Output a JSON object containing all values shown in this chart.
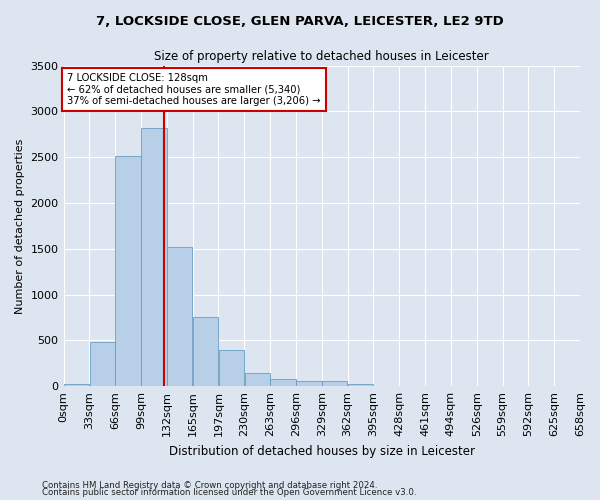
{
  "title": "7, LOCKSIDE CLOSE, GLEN PARVA, LEICESTER, LE2 9TD",
  "subtitle": "Size of property relative to detached houses in Leicester",
  "xlabel": "Distribution of detached houses by size in Leicester",
  "ylabel": "Number of detached properties",
  "bar_values": [
    25,
    480,
    2510,
    2820,
    1520,
    750,
    390,
    140,
    75,
    60,
    60,
    25,
    0,
    0,
    0,
    0,
    0,
    0,
    0,
    0
  ],
  "bin_labels": [
    "0sqm",
    "33sqm",
    "66sqm",
    "99sqm",
    "132sqm",
    "165sqm",
    "197sqm",
    "230sqm",
    "263sqm",
    "296sqm",
    "329sqm",
    "362sqm",
    "395sqm",
    "428sqm",
    "461sqm",
    "494sqm",
    "526sqm",
    "559sqm",
    "592sqm",
    "625sqm",
    "658sqm"
  ],
  "bar_color": "#b8cfe8",
  "bar_edge_color": "#6a9ec0",
  "background_color": "#dde6f0",
  "grid_color": "#ffffff",
  "property_line_x": 128,
  "property_line_label": "7 LOCKSIDE CLOSE: 128sqm",
  "annotation_line1": "← 62% of detached houses are smaller (5,340)",
  "annotation_line2": "37% of semi-detached houses are larger (3,206) →",
  "annotation_box_color": "#ffffff",
  "annotation_box_edge_color": "#cc0000",
  "vline_color": "#cc0000",
  "ylim": [
    0,
    3500
  ],
  "yticks": [
    0,
    500,
    1000,
    1500,
    2000,
    2500,
    3000,
    3500
  ],
  "footnote1": "Contains HM Land Registry data © Crown copyright and database right 2024.",
  "footnote2": "Contains public sector information licensed under the Open Government Licence v3.0.",
  "bin_width": 33
}
